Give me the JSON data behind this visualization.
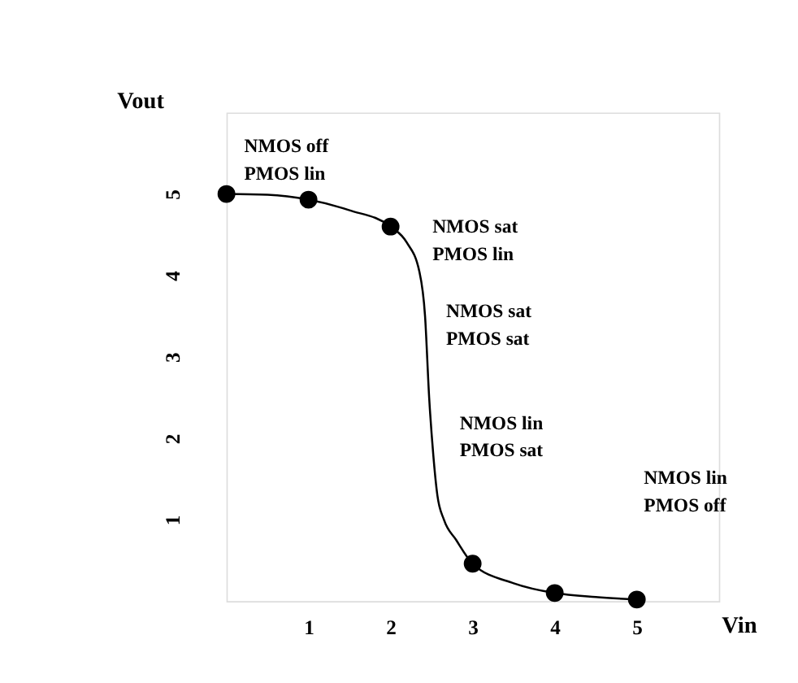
{
  "chart_data": {
    "type": "line",
    "xlabel": "Vin",
    "ylabel": "Vout",
    "xlim": [
      0,
      6
    ],
    "ylim": [
      0,
      6
    ],
    "xticks": [
      1,
      2,
      3,
      4,
      5
    ],
    "yticks": [
      1,
      2,
      3,
      4,
      5
    ],
    "grid": false,
    "series": [
      {
        "color": "#000000",
        "marker": "none",
        "line_style": "solid",
        "x": [
          0,
          0.5,
          1,
          1.5,
          2,
          2.2,
          2.35,
          2.42,
          2.47,
          2.52,
          2.57,
          2.65,
          2.8,
          3,
          3.5,
          4,
          4.5,
          5
        ],
        "values": [
          5,
          4.99,
          4.93,
          4.8,
          4.6,
          4.4,
          4.05,
          3.5,
          2.5,
          1.8,
          1.3,
          1.0,
          0.75,
          0.46,
          0.22,
          0.1,
          0.05,
          0.02
        ]
      },
      {
        "type": "scatter",
        "color": "#000000",
        "marker": "circle",
        "x": [
          0,
          1,
          2,
          3,
          4,
          5
        ],
        "values": [
          5,
          4.93,
          4.6,
          0.46,
          0.1,
          0.02
        ]
      }
    ],
    "annotations": [
      "NMOS off\nPMOS lin",
      "NMOS sat\nPMOS lin",
      "NMOS sat\nPMOS sat",
      "NMOS lin\nPMOS sat",
      "NMOS lin\nPMOS off"
    ]
  }
}
